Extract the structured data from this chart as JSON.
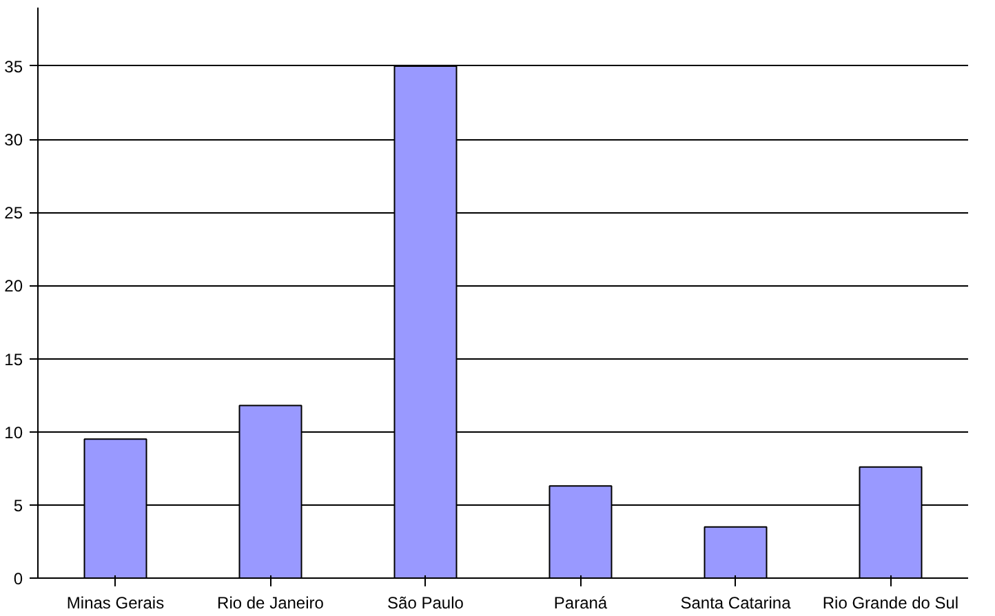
{
  "chart_data": {
    "type": "bar",
    "categories": [
      "Minas Gerais",
      "Rio de Janeiro",
      "São Paulo",
      "Paraná",
      "Santa Catarina",
      "Rio Grande do Sul"
    ],
    "values": [
      9.5,
      11.8,
      35,
      6.3,
      3.5,
      7.6
    ],
    "color": "#9999ff",
    "ylim": [
      0,
      39
    ],
    "yticks": [
      0,
      5,
      10,
      15,
      20,
      25,
      30,
      35
    ],
    "grid": "y"
  }
}
